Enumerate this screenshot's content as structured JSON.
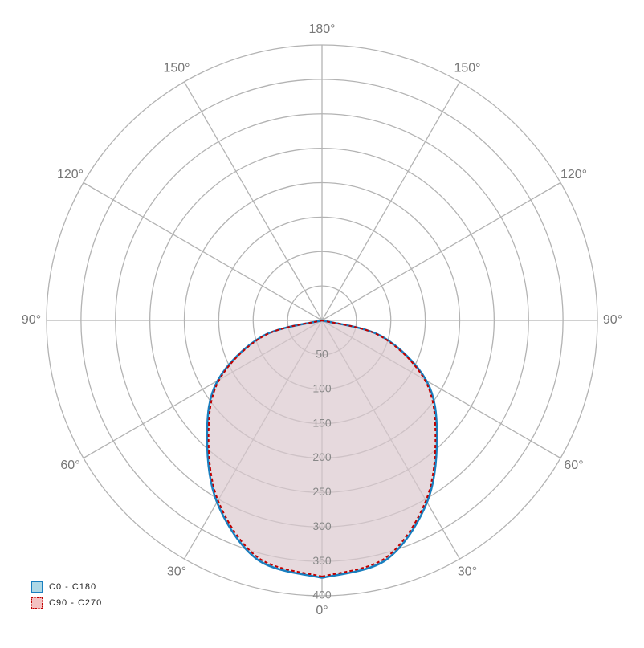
{
  "chart_data": {
    "type": "polar",
    "theta": [
      0,
      15,
      30,
      45,
      60,
      75,
      90
    ],
    "series": [
      {
        "name": "C0 - C180",
        "color": "#1a7fbf",
        "fill": "#add8e6",
        "values": [
          374,
          360,
          305,
          236,
          175,
          90,
          0
        ]
      },
      {
        "name": "C90 - C270",
        "color": "#c00000",
        "fill": "#f4c2c2",
        "dashed": true,
        "values": [
          372,
          357,
          302,
          233,
          172,
          88,
          0
        ]
      }
    ],
    "rlim": [
      0,
      400
    ],
    "rticks": [
      50,
      100,
      150,
      200,
      250,
      300,
      350,
      400
    ],
    "thetaticks": [
      {
        "value": 0,
        "label": "0°"
      },
      {
        "value": 30,
        "label": "30°"
      },
      {
        "value": 60,
        "label": "60°"
      },
      {
        "value": 90,
        "label": "90°"
      },
      {
        "value": 120,
        "label": "120°"
      },
      {
        "value": 150,
        "label": "150°"
      },
      {
        "value": 180,
        "label": "180°"
      }
    ],
    "grid": true,
    "legend": "lower left"
  }
}
